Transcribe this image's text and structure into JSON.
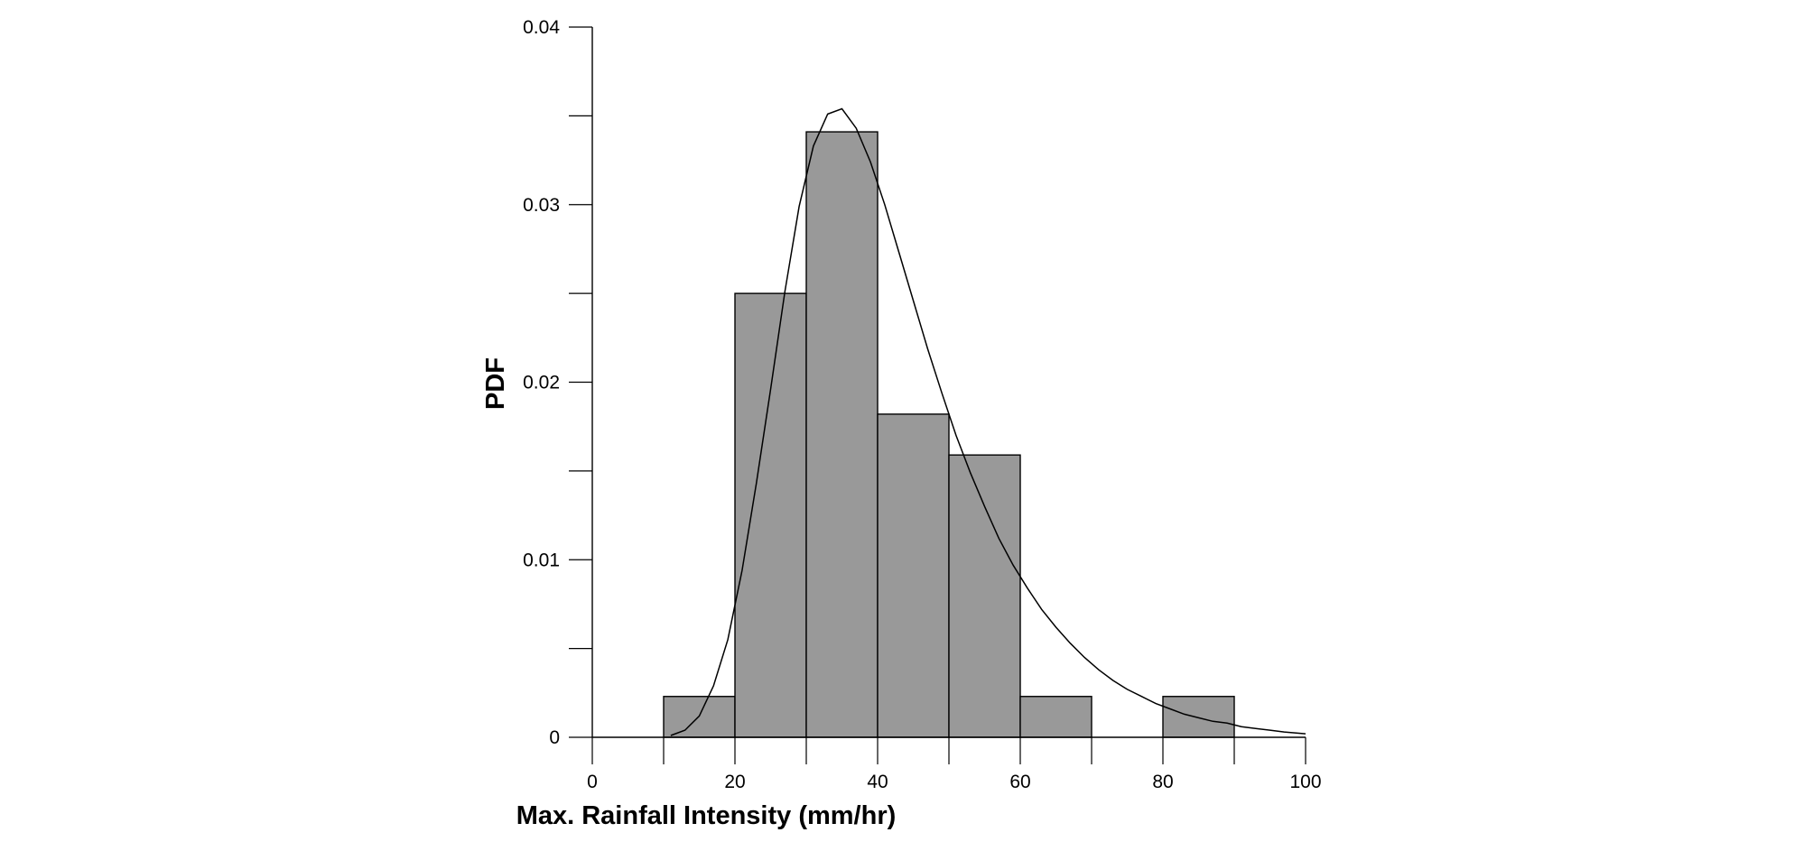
{
  "chart_data": {
    "type": "bar",
    "title": "",
    "xlabel": "Max. Rainfall Intensity (mm/hr)",
    "ylabel": "PDF",
    "xlim": [
      0,
      100
    ],
    "ylim": [
      0,
      0.04
    ],
    "x_ticks": [
      0,
      20,
      40,
      60,
      80,
      100
    ],
    "x_tick_labels": [
      "0",
      "20",
      "40",
      "60",
      "80",
      "100"
    ],
    "y_ticks": [
      0,
      0.01,
      0.02,
      0.03,
      0.04
    ],
    "y_tick_labels": [
      "0",
      "0.01",
      "0.02",
      "0.03",
      "0.04"
    ],
    "grid": false,
    "bar_color": "#999999",
    "bin_edges": [
      10,
      20,
      30,
      40,
      50,
      60,
      70,
      80,
      90
    ],
    "values": [
      0.0023,
      0.025,
      0.0341,
      0.0182,
      0.0159,
      0.0023,
      0,
      0.0023
    ],
    "fitted_curve": {
      "type": "line",
      "color": "#000000",
      "x": [
        11,
        13,
        15,
        17,
        19,
        21,
        23,
        25,
        27,
        29,
        31,
        33,
        35,
        37,
        39,
        41,
        43,
        45,
        47,
        49,
        51,
        53,
        55,
        57,
        59,
        61,
        63,
        65,
        67,
        69,
        71,
        73,
        75,
        77,
        79,
        81,
        83,
        85,
        87,
        89,
        91,
        93,
        95,
        97,
        100
      ],
      "y": [
        0.0001,
        0.0004,
        0.0012,
        0.0029,
        0.0055,
        0.0094,
        0.0143,
        0.0196,
        0.0251,
        0.0299,
        0.0333,
        0.0351,
        0.0354,
        0.0343,
        0.0324,
        0.03,
        0.0273,
        0.0246,
        0.0219,
        0.0194,
        0.017,
        0.0149,
        0.013,
        0.0112,
        0.0097,
        0.0084,
        0.0072,
        0.0062,
        0.0053,
        0.0045,
        0.0038,
        0.0032,
        0.0027,
        0.0023,
        0.0019,
        0.0016,
        0.0013,
        0.0011,
        0.0009,
        0.0008,
        0.0006,
        0.0005,
        0.0004,
        0.0003,
        0.0002
      ]
    }
  }
}
